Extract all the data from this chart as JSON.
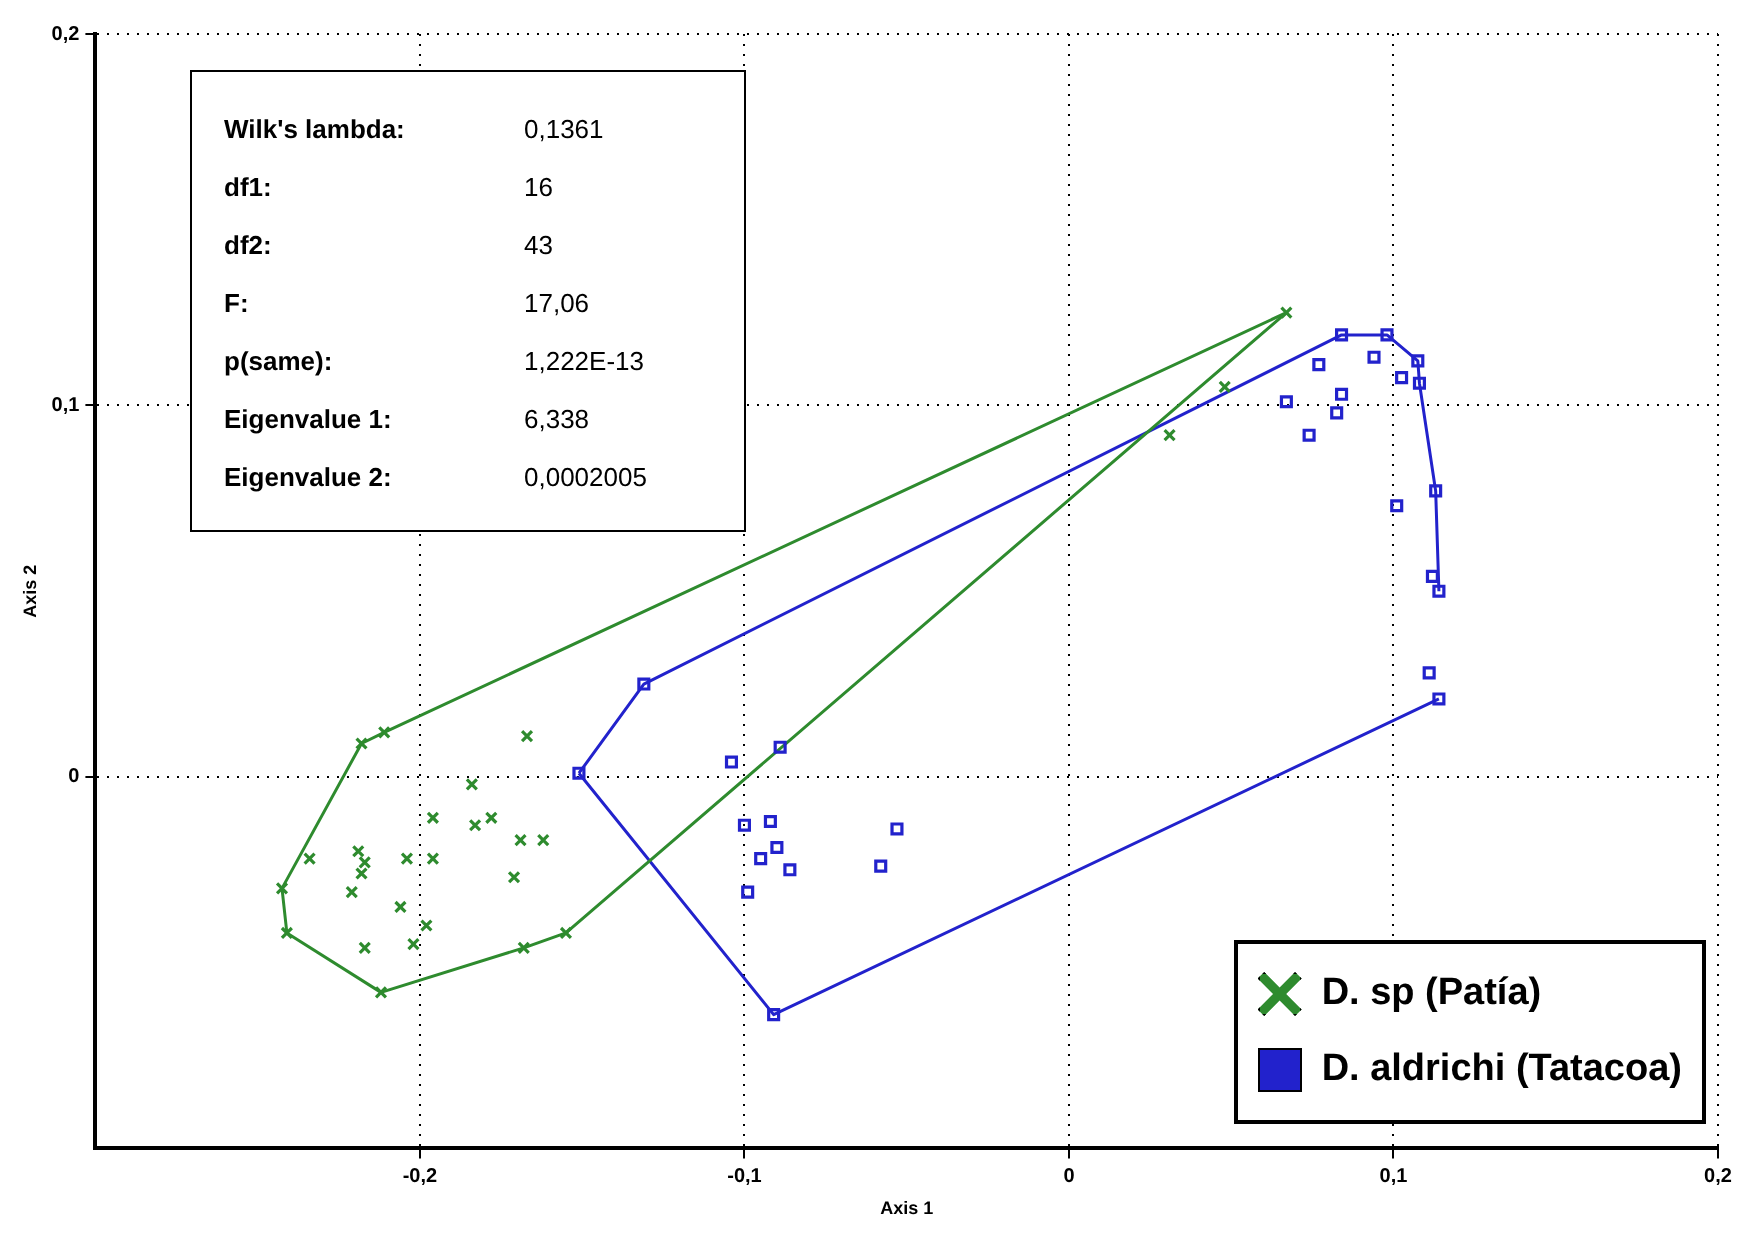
{
  "chart_data": {
    "type": "scatter",
    "xlabel": "Axis 1",
    "ylabel": "Axis 2",
    "xlim": [
      -0.3,
      0.2
    ],
    "ylim": [
      -0.1,
      0.2
    ],
    "xticks": [
      {
        "value": -0.2,
        "label": "-0,2"
      },
      {
        "value": -0.1,
        "label": "-0,1"
      },
      0,
      {
        "value": 0.1,
        "label": "0,1"
      },
      {
        "value": 0.2,
        "label": "0,2"
      }
    ],
    "yticks": [
      0,
      {
        "value": 0.1,
        "label": "0,1"
      },
      {
        "value": 0.2,
        "label": "0,2"
      }
    ],
    "grid": true,
    "legend": "bottom right",
    "annotations": [
      "Wilk's lambda: 0,1361",
      "df1: 16",
      "df2: 43",
      "F: 17,06",
      "p(same): 1,222E-13",
      "Eigenvalue 1: 6,338",
      "Eigenvalue 2: 0,0002005"
    ],
    "series": [
      {
        "name": "D. sp (Patía)",
        "color": "#2e8b2e",
        "marker": "cross",
        "x": [
          -0.167,
          -0.184,
          -0.196,
          -0.183,
          -0.178,
          -0.169,
          -0.162,
          -0.234,
          -0.219,
          -0.217,
          -0.218,
          -0.221,
          -0.204,
          -0.196,
          -0.171,
          -0.206,
          -0.198,
          -0.217,
          -0.202,
          -0.218,
          -0.211,
          -0.2425,
          -0.241,
          -0.212,
          -0.168,
          -0.155,
          0.067,
          0.048,
          0.031
        ],
        "values": [
          0.011,
          -0.002,
          -0.011,
          -0.013,
          -0.011,
          -0.017,
          -0.017,
          -0.022,
          -0.02,
          -0.023,
          -0.026,
          -0.031,
          -0.022,
          -0.022,
          -0.027,
          -0.035,
          -0.04,
          -0.046,
          -0.045,
          0.009,
          0.012,
          -0.03,
          -0.042,
          -0.058,
          -0.046,
          -0.042,
          0.125,
          0.105,
          0.092
        ]
      },
      {
        "name": "D. aldrichi (Tatacoa)",
        "color": "#2222cc",
        "marker": "square",
        "x": [
          -0.131,
          -0.151,
          -0.091,
          -0.104,
          -0.089,
          -0.1,
          -0.092,
          -0.095,
          -0.09,
          -0.086,
          -0.099,
          -0.053,
          -0.058,
          0.084,
          0.098,
          0.077,
          0.094,
          0.1025,
          0.084,
          0.0825,
          0.067,
          0.074,
          0.1075,
          0.108,
          0.101,
          0.113,
          0.112,
          0.114,
          0.111,
          0.114
        ],
        "values": [
          0.025,
          0.001,
          -0.064,
          0.004,
          0.008,
          -0.013,
          -0.012,
          -0.022,
          -0.019,
          -0.025,
          -0.031,
          -0.014,
          -0.024,
          0.119,
          0.119,
          0.111,
          0.113,
          0.1075,
          0.103,
          0.098,
          0.101,
          0.092,
          0.112,
          0.106,
          0.073,
          0.077,
          0.054,
          0.05,
          0.028,
          0.021
        ]
      },
      {
        "type": "line",
        "color": "#2e8b2e",
        "marker": "none",
        "x": [
          -0.2425,
          -0.218,
          -0.211,
          0.067
        ],
        "values": [
          -0.03,
          0.009,
          0.012,
          0.125
        ]
      },
      {
        "type": "line",
        "color": "#2e8b2e",
        "marker": "none",
        "x": [
          -0.2425,
          -0.241,
          -0.212,
          -0.168,
          -0.155,
          0.067
        ],
        "values": [
          -0.03,
          -0.042,
          -0.058,
          -0.046,
          -0.042,
          0.125
        ]
      },
      {
        "type": "line",
        "color": "#2222cc",
        "marker": "none",
        "x": [
          -0.151,
          -0.131,
          0.084,
          0.098,
          0.1075,
          0.108,
          0.113,
          0.114
        ],
        "values": [
          0.001,
          0.025,
          0.119,
          0.119,
          0.112,
          0.106,
          0.077,
          0.05
        ]
      },
      {
        "type": "line",
        "color": "#2222cc",
        "marker": "none",
        "x": [
          -0.151,
          -0.091,
          0.114
        ],
        "values": [
          0.001,
          -0.064,
          0.021
        ]
      }
    ]
  }
}
